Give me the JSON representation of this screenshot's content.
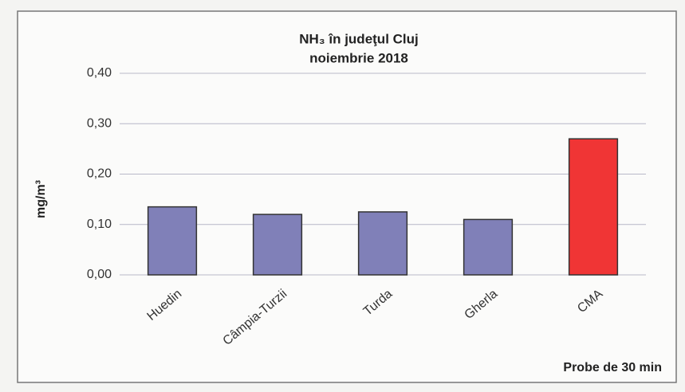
{
  "chart_data": {
    "type": "bar",
    "title": "NH₃ în judeţul Cluj",
    "subtitle": "noiembrie 2018",
    "y_label": "mg/m³",
    "x_label": "Probe de 30 min",
    "categories": [
      "Huedin",
      "Câmpia-Turzii",
      "Turda",
      "Gherla",
      "CMA"
    ],
    "values": [
      0.135,
      0.12,
      0.125,
      0.11,
      0.27
    ],
    "colors": [
      "#8080b8",
      "#8080b8",
      "#8080b8",
      "#8080b8",
      "#f03535"
    ],
    "ylim": [
      0,
      0.4
    ],
    "yticks": [
      {
        "value": 0,
        "label": "0,00"
      },
      {
        "value": 0.1,
        "label": "0,10"
      },
      {
        "value": 0.2,
        "label": "0,20"
      },
      {
        "value": 0.3,
        "label": "0,30"
      },
      {
        "value": 0.4,
        "label": "0,40"
      }
    ],
    "grid": true
  }
}
